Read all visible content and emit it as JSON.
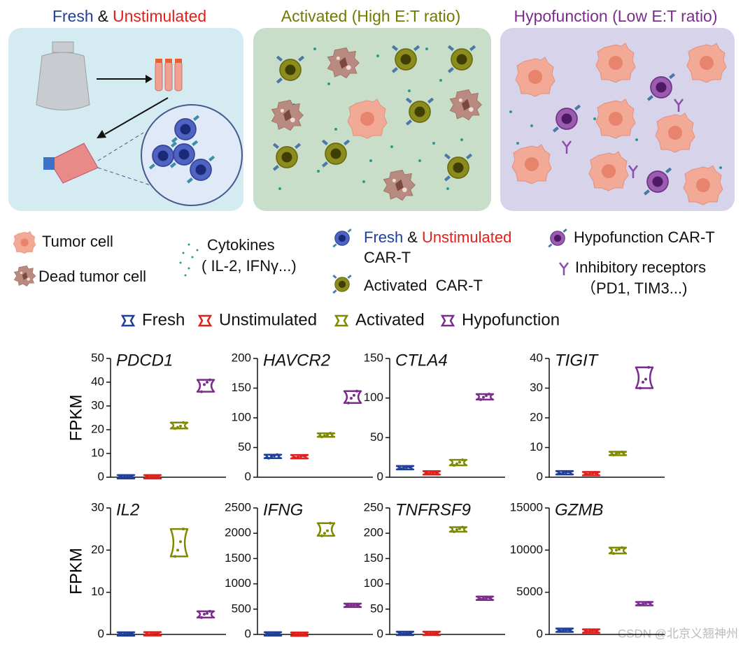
{
  "panels": [
    {
      "title": [
        "Fresh",
        "&",
        "Unstimulated"
      ]
    },
    {
      "title": "Activated (High E:T ratio)"
    },
    {
      "title": "Hypofunction (Low E:T ratio)"
    }
  ],
  "key": {
    "tumor": "Tumor cell",
    "dead": "Dead tumor cell",
    "cytokines": [
      "Cytokines",
      "( IL-2, IFNγ...)"
    ],
    "fresh_car_t": [
      "Fresh",
      "&",
      "Unstimulated",
      "CAR-T"
    ],
    "activated_car_t": "Activated  CAR-T",
    "hypo_car_t": "Hypofunction CAR-T",
    "receptors": [
      "Inhibitory receptors",
      "（PD1, TIM3...)"
    ]
  },
  "legend": [
    {
      "name": "Fresh",
      "color": "#1f3f9a"
    },
    {
      "name": "Unstimulated",
      "color": "#e0201b"
    },
    {
      "name": "Activated",
      "color": "#7f8a00"
    },
    {
      "name": "Hypofunction",
      "color": "#7b2d8e"
    }
  ],
  "chart_data": [
    {
      "type": "violin",
      "title": "PDCD1",
      "ylabel": "FPKM",
      "ylim": [
        0,
        50
      ],
      "yticks": [
        0,
        10,
        20,
        30,
        40,
        50
      ],
      "values": [
        [
          0.1,
          0.2,
          0.2,
          0.3
        ],
        [
          0.1,
          0.2,
          0.2,
          0.3
        ],
        [
          20.5,
          21,
          21.5,
          23
        ],
        [
          36,
          39,
          40,
          41
        ]
      ]
    },
    {
      "type": "violin",
      "title": "HAVCR2",
      "ylim": [
        0,
        200
      ],
      "yticks": [
        0,
        50,
        100,
        150,
        200
      ],
      "values": [
        [
          32,
          35,
          36,
          38
        ],
        [
          33,
          34,
          35,
          36
        ],
        [
          68,
          70,
          71,
          74
        ],
        [
          125,
          133,
          138,
          145
        ]
      ]
    },
    {
      "type": "violin",
      "title": "CTLA4",
      "ylim": [
        0,
        150
      ],
      "yticks": [
        0,
        50,
        100,
        150
      ],
      "values": [
        [
          11,
          12,
          12.5,
          13
        ],
        [
          5,
          5.5,
          5.5,
          6
        ],
        [
          15,
          17,
          19,
          22
        ],
        [
          98,
          101,
          103,
          105
        ]
      ]
    },
    {
      "type": "violin",
      "title": "TIGIT",
      "ylim": [
        0,
        40
      ],
      "yticks": [
        0,
        10,
        20,
        30,
        40
      ],
      "values": [
        [
          1.2,
          1.5,
          1.6,
          1.8
        ],
        [
          1,
          1.2,
          1.3,
          1.4
        ],
        [
          7.5,
          8,
          8.2,
          8.5
        ],
        [
          30,
          32,
          33,
          37
        ]
      ]
    },
    {
      "type": "violin",
      "title": "IL2",
      "ylabel": "FPKM",
      "ylim": [
        0,
        30
      ],
      "yticks": [
        0,
        10,
        20,
        30
      ],
      "values": [
        [
          0,
          0.1,
          0.1,
          0.2
        ],
        [
          0,
          0.1,
          0.2,
          0.3
        ],
        [
          18.5,
          20,
          22,
          25
        ],
        [
          4,
          4.8,
          5,
          5.5
        ]
      ]
    },
    {
      "type": "violin",
      "title": "IFNG",
      "ylim": [
        0,
        2500
      ],
      "yticks": [
        0,
        500,
        1000,
        1500,
        2000,
        2500
      ],
      "values": [
        [
          8,
          10,
          11,
          12
        ],
        [
          4,
          5,
          5,
          6
        ],
        [
          1950,
          2000,
          2050,
          2200
        ],
        [
          570,
          574,
          576,
          580
        ]
      ]
    },
    {
      "type": "violin",
      "title": "TNFRSF9",
      "ylim": [
        0,
        250
      ],
      "yticks": [
        0,
        50,
        100,
        150,
        200,
        250
      ],
      "values": [
        [
          1.5,
          2,
          2,
          2.5
        ],
        [
          1.5,
          2,
          2,
          2.5
        ],
        [
          203,
          207,
          209,
          212
        ],
        [
          70,
          71,
          72,
          73
        ]
      ]
    },
    {
      "type": "violin",
      "title": "GZMB",
      "ylim": [
        0,
        15000
      ],
      "yticks": [
        0,
        5000,
        10000,
        15000
      ],
      "values": [
        [
          450,
          500,
          520,
          550
        ],
        [
          350,
          400,
          420,
          450
        ],
        [
          9600,
          10000,
          10100,
          10300
        ],
        [
          3500,
          3600,
          3700,
          3800
        ]
      ]
    }
  ],
  "watermark": "CSDN @北京义翘神州"
}
